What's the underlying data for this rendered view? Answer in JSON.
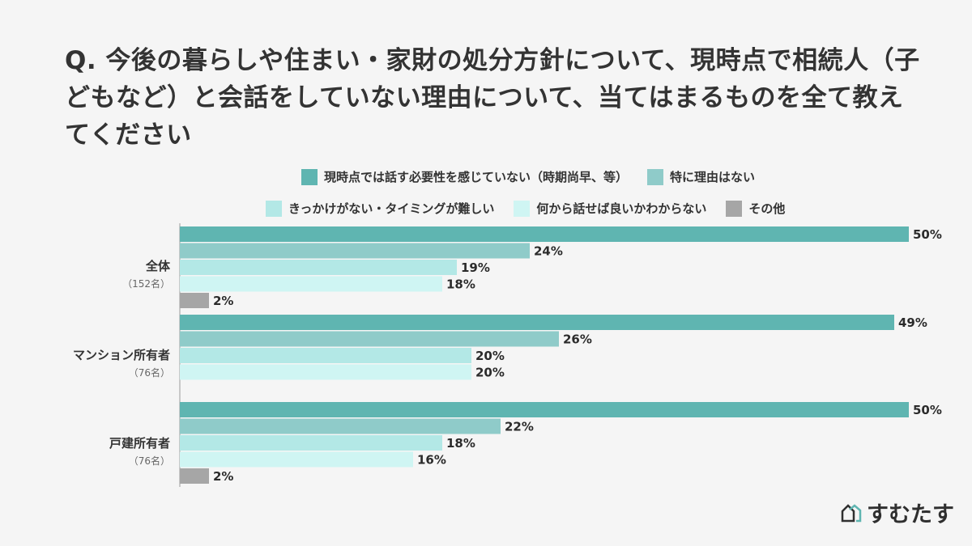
{
  "title": "Q. 今後の暮らしや住まい・家財の処分方針について、現時点で相続人（子どもなど）と会話をしていない理由について、当てはまるものを全て教えてください",
  "logo_text": "すむたす",
  "chart_data": {
    "type": "bar",
    "orientation": "horizontal",
    "title": "Q. 今後の暮らしや住まい・家財の処分方針について、現時点で相続人（子どもなど）と会話をしていない理由について、当てはまるものを全て教えてください",
    "categories": [
      {
        "label": "全体",
        "sublabel": "（152名）"
      },
      {
        "label": "マンション所有者",
        "sublabel": "（76名）"
      },
      {
        "label": "戸建所有者",
        "sublabel": "（76名）"
      }
    ],
    "series": [
      {
        "name": "現時点では話す必要性を感じていない（時期尚早、等）",
        "color": "#5fb5b1",
        "values": [
          50,
          49,
          50
        ],
        "labels": [
          "50%",
          "49%",
          "50%"
        ]
      },
      {
        "name": "特に理由はない",
        "color": "#8fcbc9",
        "values": [
          24,
          26,
          22
        ],
        "labels": [
          "24%",
          "26%",
          "22%"
        ]
      },
      {
        "name": "きっかけがない・タイミングが難しい",
        "color": "#b3e8e6",
        "values": [
          19,
          20,
          18
        ],
        "labels": [
          "19%",
          "20%",
          "18%"
        ]
      },
      {
        "name": "何から話せば良いかわからない",
        "color": "#cff5f3",
        "values": [
          18,
          20,
          16
        ],
        "labels": [
          "18%",
          "20%",
          "16%"
        ]
      },
      {
        "name": "その他",
        "color": "#a6a6a6",
        "values": [
          2,
          0,
          2
        ],
        "labels": [
          "2%",
          "",
          "2%"
        ]
      }
    ],
    "legend_position": "top",
    "grid": false
  }
}
